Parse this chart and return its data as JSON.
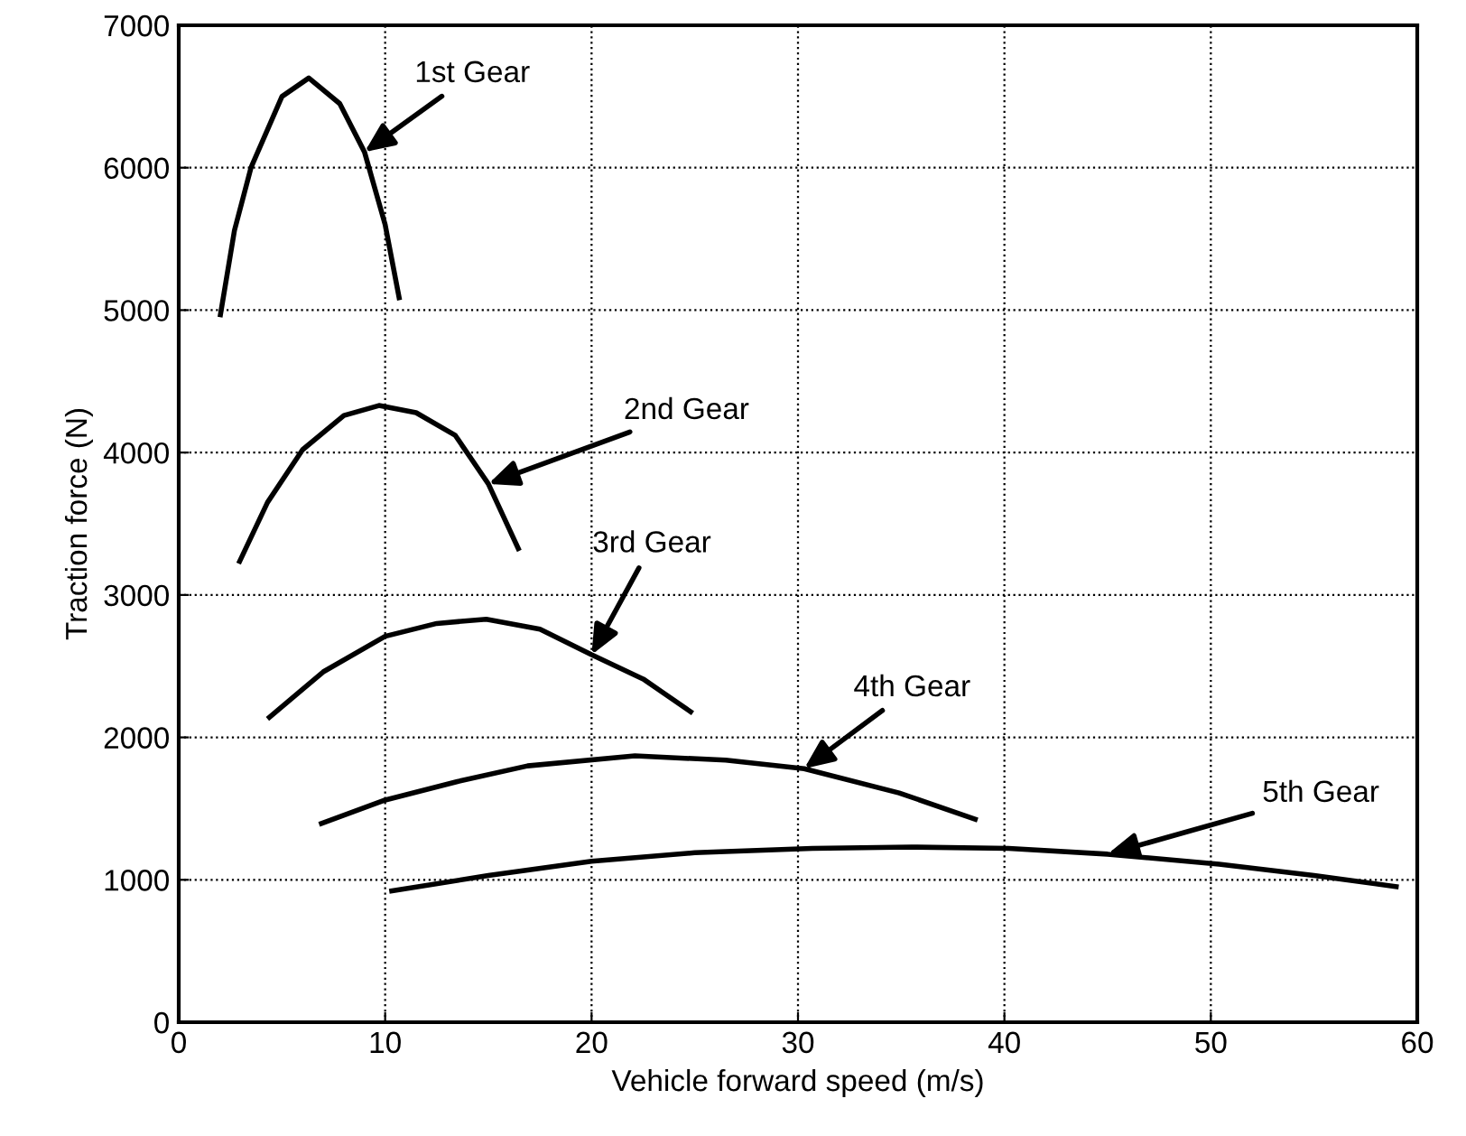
{
  "chart_data": {
    "type": "line",
    "xlabel": "Vehicle forward speed (m/s)",
    "ylabel": "Traction force (N)",
    "xlim": [
      0,
      60
    ],
    "xticks": [
      0,
      10,
      20,
      30,
      40,
      50,
      60
    ],
    "ylim": [
      0,
      7000
    ],
    "yticks": [
      0,
      1000,
      2000,
      3000,
      4000,
      5000,
      6000,
      7000
    ],
    "grid": true,
    "line_style": "solid",
    "marker": "none",
    "series": [
      {
        "color": "#000000",
        "x": [
          2.0,
          2.7,
          3.5,
          5.0,
          6.3,
          7.8,
          9.0,
          10.0,
          10.7
        ],
        "values": [
          4950,
          5560,
          6000,
          6500,
          6630,
          6450,
          6110,
          5600,
          5070
        ]
      },
      {
        "color": "#000000",
        "x": [
          2.9,
          4.3,
          6.0,
          8.0,
          9.7,
          11.5,
          13.4,
          15.0,
          16.5
        ],
        "values": [
          3220,
          3650,
          4020,
          4260,
          4330,
          4280,
          4120,
          3780,
          3310
        ]
      },
      {
        "color": "#000000",
        "x": [
          4.3,
          7.0,
          10.0,
          12.5,
          14.9,
          17.5,
          20.0,
          22.5,
          24.9
        ],
        "values": [
          2130,
          2460,
          2710,
          2800,
          2830,
          2760,
          2580,
          2410,
          2170
        ]
      },
      {
        "color": "#000000",
        "x": [
          6.8,
          10.0,
          13.5,
          16.9,
          22.1,
          26.5,
          30.3,
          34.9,
          38.7
        ],
        "values": [
          1390,
          1560,
          1690,
          1800,
          1870,
          1840,
          1780,
          1610,
          1420
        ]
      },
      {
        "color": "#000000",
        "x": [
          10.2,
          15.0,
          20.0,
          25.0,
          30.7,
          35.5,
          40.2,
          45.0,
          50.4,
          55.0,
          59.1
        ],
        "values": [
          920,
          1030,
          1130,
          1190,
          1220,
          1230,
          1220,
          1180,
          1110,
          1030,
          950
        ]
      }
    ],
    "annotations": [
      {
        "text": "1st Gear",
        "x": 9.0,
        "y": 6110
      },
      {
        "text": "2nd Gear",
        "x": 15.0,
        "y": 3780
      },
      {
        "text": "3rd Gear",
        "x": 20.0,
        "y": 2580
      },
      {
        "text": "4th Gear",
        "x": 30.3,
        "y": 1780
      },
      {
        "text": "5th Gear",
        "x": 45.0,
        "y": 1180
      }
    ]
  }
}
